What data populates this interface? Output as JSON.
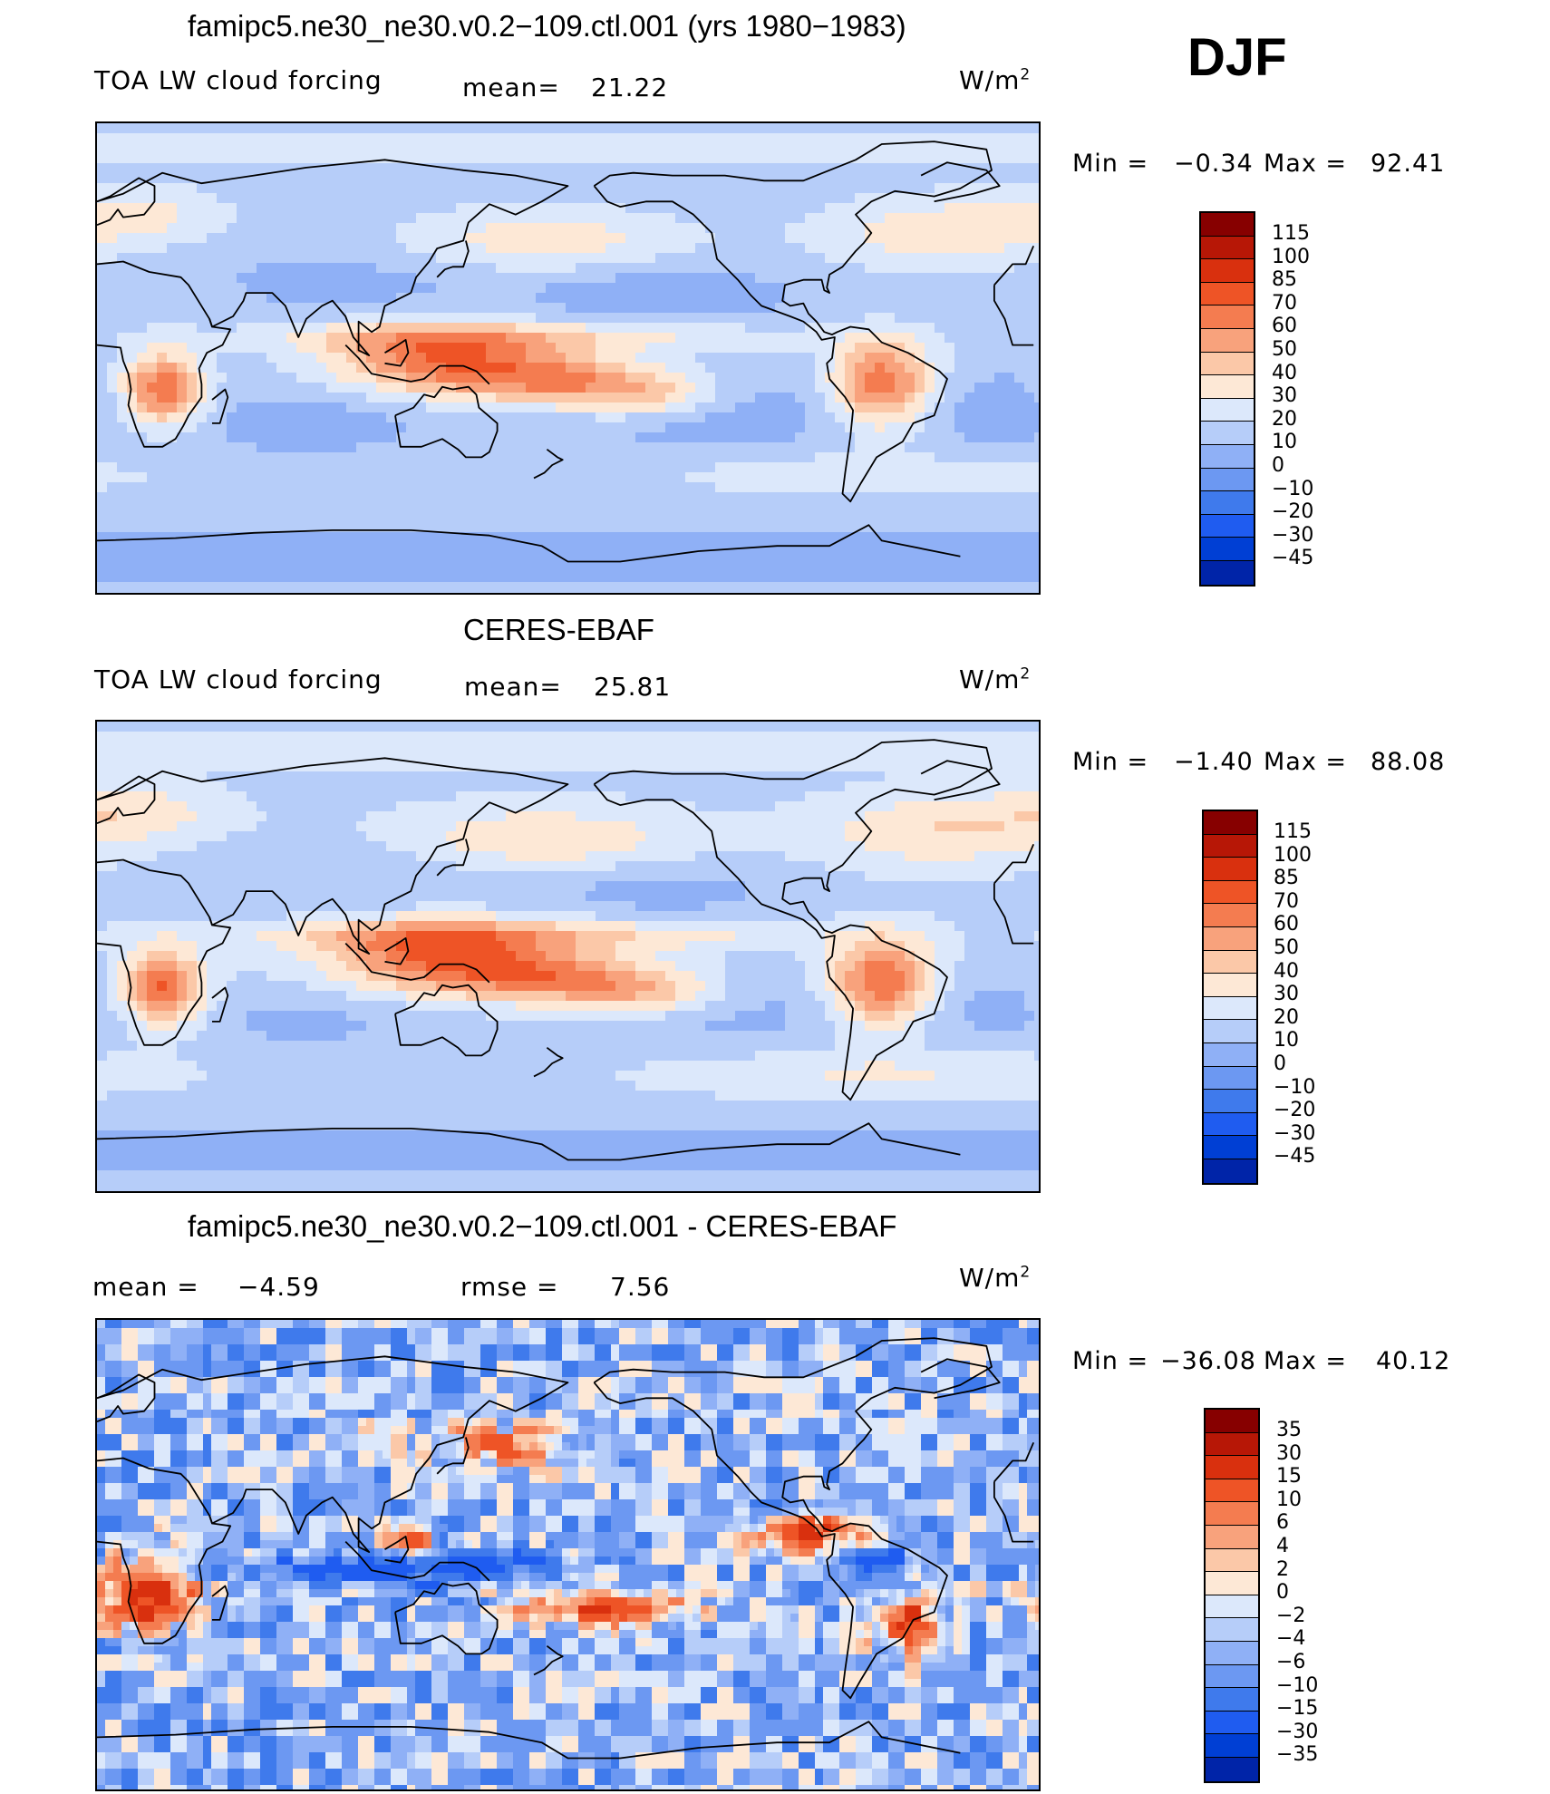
{
  "header": {
    "season": "DJF"
  },
  "colors": {
    "levels": [
      "#00007e",
      "#0024a8",
      "#003fd4",
      "#1f5cf0",
      "#3f7aec",
      "#6c98f2",
      "#8fb0f6",
      "#b6cdf9",
      "#dce8fb",
      "#fde8d6",
      "#fbc8a8",
      "#f8a27c",
      "#f47c50",
      "#ee5426",
      "#d9300e",
      "#b71706",
      "#870000"
    ],
    "coast": "#000000"
  },
  "chart_data": [
    {
      "type": "heatmap",
      "title": "famipc5.ne30_ne30.v0.2-109.ctl.001 (yrs 1980-1983)",
      "left_label": "TOA LW cloud forcing",
      "stat_label": "mean=",
      "stat_value": "21.22",
      "stat2_label": "",
      "stat2_value": "",
      "units": "W/m",
      "units_sup": "2",
      "min_label": "Min =",
      "min_value": "-0.34",
      "max_label": "Max =",
      "max_value": "92.41",
      "colorbar_levels": [
        "115",
        "100",
        "85",
        "70",
        "60",
        "50",
        "40",
        "30",
        "20",
        "10",
        "0",
        "-10",
        "-20",
        "-30",
        "-45"
      ],
      "field": "model"
    },
    {
      "type": "heatmap",
      "title": "CERES-EBAF",
      "left_label": "TOA LW cloud forcing",
      "stat_label": "mean=",
      "stat_value": "25.81",
      "stat2_label": "",
      "stat2_value": "",
      "units": "W/m",
      "units_sup": "2",
      "min_label": "Min =",
      "min_value": "-1.40",
      "max_label": "Max =",
      "max_value": "88.08",
      "colorbar_levels": [
        "115",
        "100",
        "85",
        "70",
        "60",
        "50",
        "40",
        "30",
        "20",
        "10",
        "0",
        "-10",
        "-20",
        "-30",
        "-45"
      ],
      "field": "obs"
    },
    {
      "type": "heatmap",
      "title": "famipc5.ne30_ne30.v0.2-109.ctl.001 - CERES-EBAF",
      "left_label": "mean =",
      "stat_label": "",
      "stat_value": "-4.59",
      "stat2_label": "rmse =",
      "stat2_value": "7.56",
      "units": "W/m",
      "units_sup": "2",
      "min_label": "Min =",
      "min_value": "-36.08",
      "max_label": "Max =",
      "max_value": "40.12",
      "colorbar_levels": [
        "35",
        "30",
        "15",
        "10",
        "6",
        "4",
        "2",
        "0",
        "-2",
        "-4",
        "-6",
        "-10",
        "-15",
        "-30",
        "-35"
      ],
      "field": "diff"
    }
  ]
}
